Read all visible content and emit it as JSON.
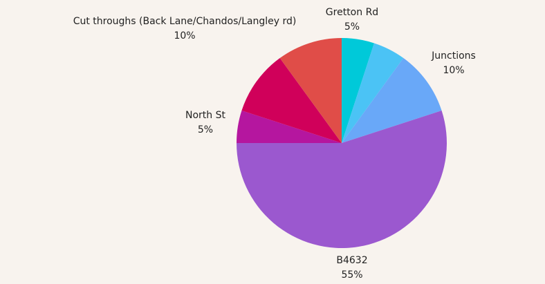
{
  "chart_data": {
    "type": "pie",
    "categories": [
      "Gretton Rd",
      null,
      "Junctions",
      "B4632",
      "North St",
      null,
      "Cut throughs (Back Lane/Chandos/Langley rd)"
    ],
    "values": [
      5,
      5,
      10,
      55,
      5,
      10,
      10
    ],
    "value_labels": [
      "5%",
      null,
      "10%",
      "55%",
      "5%",
      null,
      "10%"
    ],
    "colors": [
      "#00c9d9",
      "#4bc3f5",
      "#69a8f8",
      "#9b58cf",
      "#b5169f",
      "#d0005a",
      "#e04d48"
    ]
  }
}
